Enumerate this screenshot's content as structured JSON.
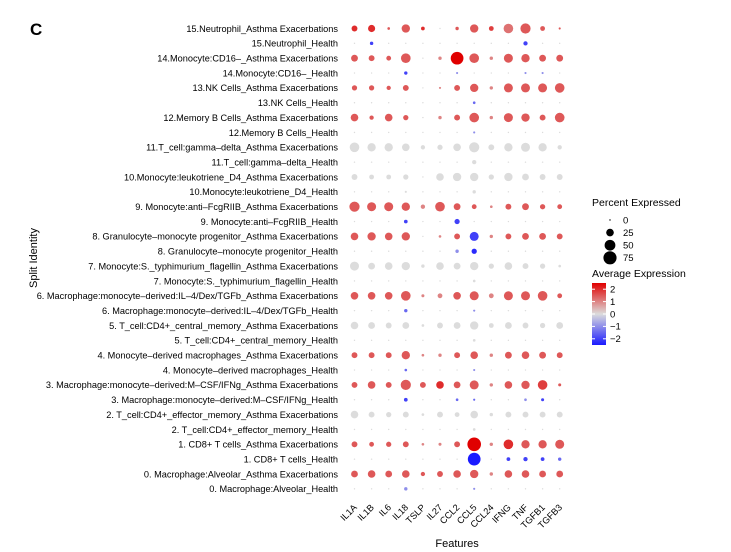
{
  "panel_letter": "C",
  "chart_data": {
    "type": "dotplot",
    "xlabel": "Features",
    "ylabel": "Split Identity",
    "features": [
      "IL1A",
      "IL1B",
      "IL6",
      "IL18",
      "TSLP",
      "IL27",
      "CCL2",
      "CCL5",
      "CCL24",
      "IFNG",
      "TNF",
      "TGFB1",
      "TGFB3"
    ],
    "rows": [
      "15.Neutrophil_Asthma Exacerbations",
      "15.Neutrophil_Health",
      "14.Monocyte:CD16–_Asthma Exacerbations",
      "14.Monocyte:CD16–_Health",
      "13.NK Cells_Asthma Exacerbations",
      "13.NK Cells_Health",
      "12.Memory B Cells_Asthma Exacerbations",
      "12.Memory B Cells_Health",
      "11.T_cell:gamma–delta_Asthma Exacerbations",
      "11.T_cell:gamma–delta_Health",
      "10.Monocyte:leukotriene_D4_Asthma Exacerbations",
      "10.Monocyte:leukotriene_D4_Health",
      "9. Monocyte:anti–FcgRIIB_Asthma Exacerbations",
      "9. Monocyte:anti–FcgRIIB_Health",
      "8. Granulocyte–monocyte progenitor_Asthma Exacerbations",
      "8. Granulocyte–monocyte progenitor_Health",
      "7. Monocyte:S._typhimurium_flagellin_Asthma Exacerbations",
      "7. Monocyte:S._typhimurium_flagellin_Health",
      "6. Macrophage:monocyte–derived:IL–4/Dex/TGFb_Asthma Exacerbations",
      "6. Macrophage:monocyte–derived:IL–4/Dex/TGFb_Health",
      "5. T_cell:CD4+_central_memory_Asthma Exacerbations",
      "5. T_cell:CD4+_central_memory_Health",
      "4. Monocyte–derived macrophages_Asthma Exacerbations",
      "4. Monocyte–derived macrophages_Health",
      "3. Macrophage:monocyte–derived:M–CSF/IFNg_Asthma Exacerbations",
      "3. Macrophage:monocyte–derived:M–CSF/IFNg_Health",
      "2. T_cell:CD4+_effector_memory_Asthma Exacerbations",
      "2. T_cell:CD4+_effector_memory_Health",
      "1. CD8+ T cells_Asthma Exacerbations",
      "1. CD8+ T cells_Health",
      "0. Macrophage:Alveolar_Asthma Exacerbations",
      "0. Macrophage:Alveolar_Health"
    ],
    "percent_expressed": [
      [
        15,
        22,
        3,
        30,
        6,
        0,
        5,
        30,
        10,
        40,
        45,
        10,
        2
      ],
      [
        0,
        5,
        0,
        0,
        0,
        0,
        0,
        0,
        0,
        0,
        8,
        0,
        0
      ],
      [
        20,
        15,
        10,
        40,
        0,
        5,
        70,
        40,
        5,
        35,
        30,
        20,
        20
      ],
      [
        0,
        0,
        0,
        5,
        0,
        0,
        2,
        0,
        0,
        0,
        2,
        2,
        0
      ],
      [
        12,
        12,
        8,
        15,
        0,
        2,
        15,
        30,
        5,
        35,
        35,
        35,
        40
      ],
      [
        0,
        0,
        0,
        0,
        0,
        0,
        0,
        3,
        0,
        0,
        0,
        0,
        0
      ],
      [
        25,
        8,
        25,
        12,
        0,
        5,
        15,
        40,
        5,
        35,
        30,
        15,
        40
      ],
      [
        0,
        0,
        0,
        0,
        0,
        0,
        0,
        2,
        0,
        0,
        0,
        0,
        0
      ],
      [
        40,
        30,
        30,
        25,
        8,
        12,
        25,
        45,
        15,
        30,
        35,
        30,
        8
      ],
      [
        0,
        0,
        0,
        0,
        0,
        0,
        0,
        8,
        0,
        0,
        0,
        0,
        0
      ],
      [
        15,
        10,
        10,
        12,
        0,
        25,
        30,
        30,
        12,
        30,
        20,
        15,
        15
      ],
      [
        0,
        0,
        0,
        2,
        0,
        0,
        0,
        5,
        0,
        0,
        0,
        0,
        0
      ],
      [
        45,
        35,
        35,
        30,
        8,
        40,
        20,
        10,
        3,
        15,
        20,
        12,
        10
      ],
      [
        0,
        0,
        0,
        6,
        0,
        0,
        12,
        0,
        0,
        0,
        0,
        0,
        0
      ],
      [
        25,
        30,
        25,
        30,
        0,
        3,
        15,
        35,
        5,
        15,
        20,
        20,
        15
      ],
      [
        0,
        0,
        0,
        0,
        0,
        0,
        5,
        12,
        0,
        0,
        0,
        0,
        0
      ],
      [
        35,
        20,
        25,
        30,
        5,
        25,
        20,
        30,
        12,
        25,
        15,
        12,
        3
      ],
      [
        0,
        0,
        0,
        0,
        0,
        0,
        0,
        3,
        0,
        0,
        0,
        0,
        0
      ],
      [
        25,
        25,
        25,
        40,
        4,
        10,
        25,
        35,
        10,
        35,
        35,
        40,
        10
      ],
      [
        0,
        0,
        0,
        5,
        0,
        0,
        0,
        2,
        0,
        0,
        0,
        0,
        0
      ],
      [
        25,
        20,
        15,
        20,
        3,
        15,
        20,
        30,
        10,
        20,
        15,
        12,
        20
      ],
      [
        0,
        0,
        0,
        0,
        0,
        0,
        0,
        3,
        0,
        0,
        0,
        0,
        0
      ],
      [
        15,
        15,
        15,
        30,
        3,
        5,
        15,
        25,
        5,
        20,
        25,
        20,
        15
      ],
      [
        0,
        0,
        0,
        3,
        0,
        0,
        0,
        2,
        0,
        0,
        0,
        0,
        0
      ],
      [
        15,
        25,
        15,
        45,
        15,
        25,
        20,
        35,
        5,
        25,
        30,
        40,
        4
      ],
      [
        0,
        0,
        0,
        6,
        0,
        0,
        3,
        2,
        0,
        0,
        3,
        4,
        0
      ],
      [
        25,
        15,
        12,
        15,
        3,
        15,
        10,
        25,
        5,
        15,
        15,
        15,
        15
      ],
      [
        0,
        0,
        0,
        0,
        0,
        0,
        0,
        3,
        0,
        0,
        0,
        0,
        0
      ],
      [
        15,
        10,
        12,
        15,
        3,
        4,
        15,
        80,
        5,
        40,
        30,
        30,
        35
      ],
      [
        0,
        0,
        0,
        0,
        0,
        0,
        0,
        70,
        0,
        6,
        8,
        6,
        5
      ],
      [
        20,
        25,
        20,
        25,
        8,
        15,
        25,
        30,
        5,
        25,
        25,
        20,
        20
      ],
      [
        0,
        0,
        0,
        5,
        0,
        0,
        0,
        2,
        0,
        0,
        0,
        0,
        0
      ]
    ],
    "average_expression": [
      [
        2,
        2,
        1.5,
        1.5,
        2,
        0,
        1.5,
        1.5,
        1.8,
        1.2,
        1.5,
        1.5,
        1.5
      ],
      [
        0,
        -2,
        0,
        0,
        0,
        0,
        0,
        0,
        0,
        0,
        -2,
        0,
        0
      ],
      [
        1.5,
        1.5,
        1.5,
        1.5,
        0,
        1,
        2.5,
        1.5,
        1,
        1.5,
        1.5,
        1.5,
        1.5
      ],
      [
        0,
        0,
        0,
        -2,
        0,
        0,
        -1,
        0,
        0,
        0,
        -1,
        -1,
        0
      ],
      [
        1.5,
        1.5,
        1.5,
        1.5,
        0,
        1,
        1.5,
        1.5,
        1,
        1.5,
        1.5,
        1.5,
        1.5
      ],
      [
        0,
        0,
        0,
        0,
        0,
        0,
        0,
        -1.5,
        0,
        0,
        0,
        0,
        0
      ],
      [
        1.5,
        1.5,
        1.5,
        1.5,
        0,
        1,
        1.5,
        1.5,
        1,
        1.5,
        1.5,
        1.5,
        1.5
      ],
      [
        0,
        0,
        0,
        0,
        0,
        0,
        0,
        -1,
        0,
        0,
        0,
        0,
        0
      ],
      [
        0,
        0,
        0,
        0,
        0,
        0,
        0,
        0,
        0,
        0,
        0,
        0,
        0
      ],
      [
        0,
        0,
        0,
        0,
        0,
        0,
        0,
        0,
        0,
        0,
        0,
        0,
        0
      ],
      [
        0,
        0,
        0,
        0,
        0,
        0,
        0,
        0,
        0,
        0,
        0,
        0,
        0
      ],
      [
        0,
        0,
        0,
        0,
        0,
        0,
        0,
        0,
        0,
        0,
        0,
        0,
        0
      ],
      [
        1.5,
        1.5,
        1.5,
        1.5,
        1,
        1.5,
        1.5,
        1.5,
        1,
        1.5,
        1.5,
        1.5,
        1.5
      ],
      [
        0,
        0,
        0,
        -2,
        0,
        0,
        -2,
        0,
        0,
        0,
        0,
        0,
        0
      ],
      [
        1.5,
        1.5,
        1.5,
        1.5,
        0,
        1,
        1.5,
        -2,
        1,
        1.5,
        1.5,
        1.5,
        1.5
      ],
      [
        0,
        0,
        0,
        0,
        0,
        0,
        -1,
        -2.3,
        0,
        0,
        0,
        0,
        0
      ],
      [
        0,
        0,
        0,
        0,
        0,
        0,
        0,
        0,
        0,
        0,
        0,
        0,
        0
      ],
      [
        0,
        0,
        0,
        0,
        0,
        0,
        0,
        0,
        0,
        0,
        0,
        0,
        0
      ],
      [
        1.5,
        1.5,
        1.5,
        1.5,
        1,
        1,
        1.5,
        1.5,
        1,
        1.5,
        1.5,
        1.5,
        1.5
      ],
      [
        0,
        0,
        0,
        -1.5,
        0,
        0,
        0,
        -1,
        0,
        0,
        0,
        0,
        0
      ],
      [
        0,
        0,
        0,
        0,
        0,
        0,
        0,
        0,
        0,
        0,
        0,
        0,
        0
      ],
      [
        0,
        0,
        0,
        0,
        0,
        0,
        0,
        0,
        0,
        0,
        0,
        0,
        0
      ],
      [
        1.5,
        1.5,
        1.5,
        1.5,
        1,
        1,
        1.5,
        1.5,
        1,
        1.5,
        1.5,
        1.5,
        1.5
      ],
      [
        0,
        0,
        0,
        -1.5,
        0,
        0,
        0,
        -1,
        0,
        0,
        0,
        0,
        0
      ],
      [
        1.5,
        1.5,
        1.5,
        1.5,
        1.5,
        2,
        1.5,
        1.5,
        1,
        1.5,
        1.5,
        1.8,
        1.5
      ],
      [
        0,
        0,
        0,
        -2,
        0,
        0,
        -1.5,
        -1.5,
        0,
        0,
        -1,
        -2,
        0
      ],
      [
        0,
        0,
        0,
        0,
        0,
        0,
        0,
        0,
        0,
        0,
        0,
        0,
        0
      ],
      [
        0,
        0,
        0,
        0,
        0,
        0,
        0,
        0,
        0,
        0,
        0,
        0,
        0
      ],
      [
        1.5,
        1.5,
        1.5,
        1.5,
        1,
        1,
        1.5,
        2.5,
        1,
        2,
        1.5,
        1.5,
        1.5
      ],
      [
        0,
        0,
        0,
        0,
        0,
        0,
        0,
        -2.5,
        0,
        -2,
        -2,
        -2,
        -1.5
      ],
      [
        1.5,
        1.5,
        1.5,
        1.5,
        1.5,
        1.5,
        1.5,
        1.5,
        1,
        1.5,
        1.5,
        1.5,
        1.5
      ],
      [
        0,
        0,
        0,
        -1,
        0,
        0,
        0,
        -1,
        0,
        0,
        0,
        0,
        0
      ]
    ],
    "size_legend": {
      "title": "Percent Expressed",
      "values": [
        0,
        25,
        50,
        75
      ]
    },
    "color_legend": {
      "title": "Average Expression",
      "ticks": [
        "2",
        "1",
        "0",
        "−1",
        "−2"
      ],
      "range": [
        -2.5,
        2.5
      ],
      "colors": {
        "low": "#1a1aff",
        "mid": "#dcdcdc",
        "high": "#e00000"
      }
    }
  }
}
